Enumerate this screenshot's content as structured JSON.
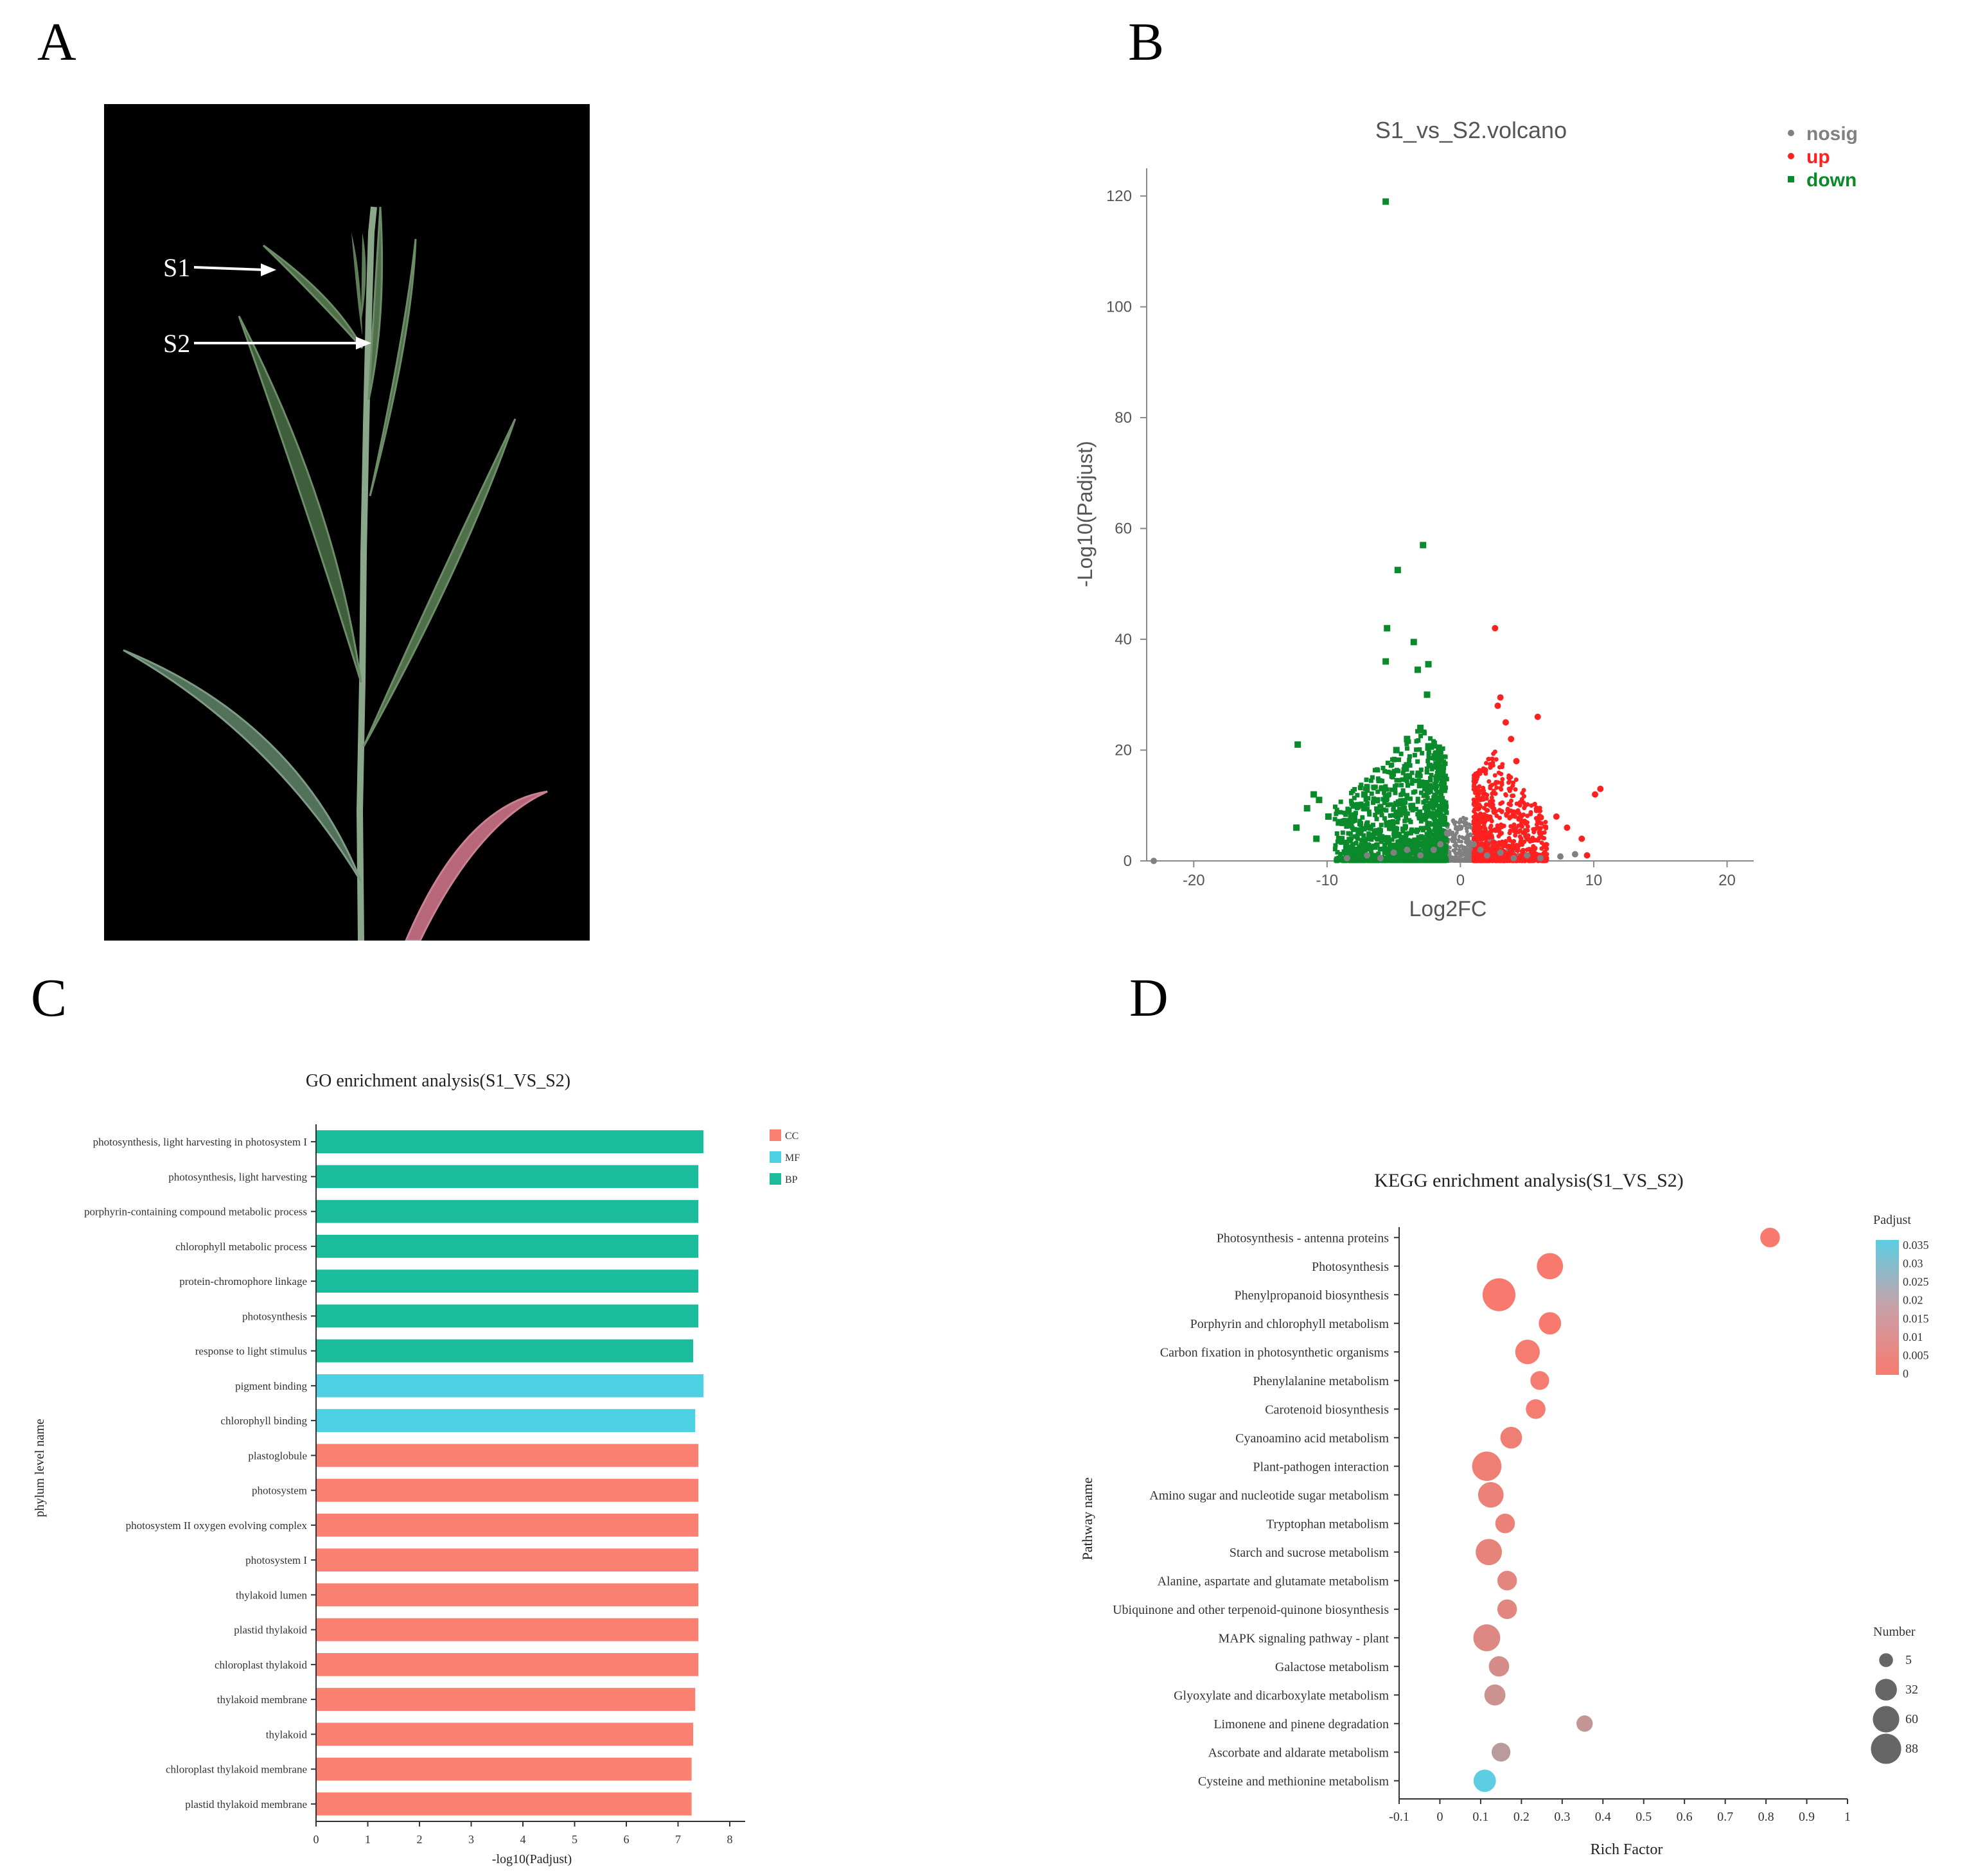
{
  "panels": {
    "a": "A",
    "b": "B",
    "c": "C",
    "d": "D"
  },
  "photo": {
    "labels": [
      "S1",
      "S2"
    ],
    "colors": {
      "background": "#000000",
      "leaf": "#4f6e4a",
      "stem": "#8aa78a",
      "senescent": "#b8667a"
    }
  },
  "chart_data": [
    {
      "type": "scatter",
      "title": "S1_vs_S2.volcano",
      "xlabel": "Log2FC",
      "ylabel": "-Log10(Padjust)",
      "xlim": [
        -23,
        22
      ],
      "ylim": [
        0,
        125
      ],
      "xticks": [
        -20,
        -10,
        0,
        10,
        20
      ],
      "yticks": [
        0,
        20,
        40,
        60,
        80,
        100,
        120
      ],
      "legend_position": "top-right",
      "series": [
        {
          "name": "nosig",
          "color": "#808080",
          "marker": "circle",
          "x": [
            -23,
            -8.5,
            -7,
            -6,
            -5,
            -4,
            -3,
            -2,
            -1.5,
            -1,
            -0.5,
            0,
            0.5,
            1,
            1.5,
            2,
            3,
            4,
            5,
            6,
            7.5,
            8.6
          ],
          "y": [
            0,
            0.5,
            1,
            0.5,
            1.5,
            2,
            1,
            2,
            3,
            5,
            4,
            6,
            4,
            3,
            2,
            1,
            1.5,
            0.5,
            1,
            0.5,
            0.8,
            1.2
          ]
        },
        {
          "name": "up",
          "color": "#ff2020",
          "marker": "circle",
          "x": [
            2.6,
            3.0,
            5.8,
            2.8,
            3.4,
            9.1,
            10.1,
            10.5,
            9.5,
            6.0,
            7.2,
            8.0,
            4.2,
            3.8
          ],
          "y": [
            42,
            29.5,
            26,
            28,
            25,
            4,
            12,
            13,
            1,
            5,
            8,
            6,
            18,
            22
          ]
        },
        {
          "name": "down",
          "color": "#0a8a2a",
          "marker": "square",
          "x": [
            -5.6,
            -2.8,
            -4.7,
            -5.5,
            -3.5,
            -5.6,
            -3.2,
            -2.4,
            -2.5,
            -12.2,
            -3.0,
            -4.0,
            -4.8,
            -11.5,
            -11.0,
            -10.6,
            -12.3,
            -9.9,
            -10.8,
            -7.2,
            -9.0,
            -8.0
          ],
          "y": [
            119,
            57,
            52.5,
            42,
            39.5,
            36,
            34.5,
            35.5,
            30,
            21,
            24,
            22,
            20,
            9.5,
            12,
            11,
            6,
            8,
            4,
            12,
            7,
            10
          ]
        }
      ]
    },
    {
      "type": "bar",
      "orientation": "horizontal",
      "title": "GO enrichment analysis(S1_VS_S2)",
      "xlabel": "-log10(Padjust)",
      "ylabel": "phylum level name",
      "xlim": [
        0,
        8
      ],
      "xticks": [
        0,
        1,
        2,
        3,
        4,
        5,
        6,
        7,
        8
      ],
      "legend_position": "top-right",
      "legend": [
        {
          "name": "CC",
          "color": "#fa8072"
        },
        {
          "name": "MF",
          "color": "#4dd0e1"
        },
        {
          "name": "BP",
          "color": "#1abc9c"
        }
      ],
      "categories": [
        "photosynthesis, light harvesting in photosystem I",
        "photosynthesis, light harvesting",
        "porphyrin-containing compound metabolic process",
        "chlorophyll metabolic process",
        "protein-chromophore linkage",
        "photosynthesis",
        "response to light stimulus",
        "pigment binding",
        "chlorophyll binding",
        "plastoglobule",
        "photosystem",
        "photosystem II oxygen evolving complex",
        "photosystem I",
        "thylakoid lumen",
        "plastid thylakoid",
        "chloroplast thylakoid",
        "thylakoid membrane",
        "thylakoid",
        "chloroplast thylakoid membrane",
        "plastid thylakoid membrane"
      ],
      "values": [
        7.48,
        7.38,
        7.38,
        7.38,
        7.38,
        7.38,
        7.28,
        7.48,
        7.32,
        7.38,
        7.38,
        7.38,
        7.38,
        7.38,
        7.38,
        7.38,
        7.32,
        7.28,
        7.25,
        7.25
      ],
      "groups": [
        "BP",
        "BP",
        "BP",
        "BP",
        "BP",
        "BP",
        "BP",
        "MF",
        "MF",
        "CC",
        "CC",
        "CC",
        "CC",
        "CC",
        "CC",
        "CC",
        "CC",
        "CC",
        "CC",
        "CC"
      ]
    },
    {
      "type": "scatter",
      "subtype": "bubble",
      "title": "KEGG enrichment analysis(S1_VS_S2)",
      "xlabel": "Rich Factor",
      "ylabel": "Pathway name",
      "xlim": [
        -0.1,
        1
      ],
      "xticks": [
        "-0.1",
        "0",
        "0.1",
        "0.2",
        "0.3",
        "0.4",
        "0.5",
        "0.6",
        "0.7",
        "0.8",
        "0.9",
        "1"
      ],
      "padjust_legend": {
        "title": "Padjust",
        "ticks": [
          "0.035",
          "0.03",
          "0.025",
          "0.02",
          "0.015",
          "0.01",
          "0.005",
          "0"
        ],
        "color_low": "#f87a6e",
        "color_high": "#5ccde2"
      },
      "number_legend": {
        "title": "Number",
        "values": [
          5,
          32,
          60,
          88
        ]
      },
      "categories": [
        "Photosynthesis - antenna proteins",
        "Photosynthesis",
        "Phenylpropanoid biosynthesis",
        "Porphyrin and chlorophyll metabolism",
        "Carbon fixation in photosynthetic organisms",
        "Phenylalanine metabolism",
        "Carotenoid biosynthesis",
        "Cyanoamino acid metabolism",
        "Plant-pathogen interaction",
        "Amino sugar and nucleotide sugar metabolism",
        "Tryptophan metabolism",
        "Starch and sucrose metabolism",
        "Alanine, aspartate and glutamate metabolism",
        "Ubiquinone and other terpenoid-quinone biosynthesis",
        "MAPK signaling pathway - plant",
        "Galactose metabolism",
        "Glyoxylate and dicarboxylate metabolism",
        "Limonene and pinene degradation",
        "Ascorbate and aldarate metabolism",
        "Cysteine and methionine metabolism"
      ],
      "rich_factor": [
        0.81,
        0.27,
        0.145,
        0.27,
        0.215,
        0.245,
        0.235,
        0.175,
        0.115,
        0.125,
        0.16,
        0.12,
        0.165,
        0.165,
        0.115,
        0.145,
        0.135,
        0.355,
        0.15,
        0.11
      ],
      "number": [
        12,
        35,
        70,
        20,
        28,
        10,
        12,
        18,
        50,
        32,
        12,
        35,
        12,
        12,
        38,
        14,
        16,
        5,
        10,
        20
      ],
      "padjust": [
        0.0,
        0.0,
        0.0,
        0.0,
        0.001,
        0.001,
        0.001,
        0.002,
        0.002,
        0.003,
        0.003,
        0.004,
        0.005,
        0.005,
        0.006,
        0.008,
        0.01,
        0.012,
        0.014,
        0.035
      ]
    }
  ]
}
